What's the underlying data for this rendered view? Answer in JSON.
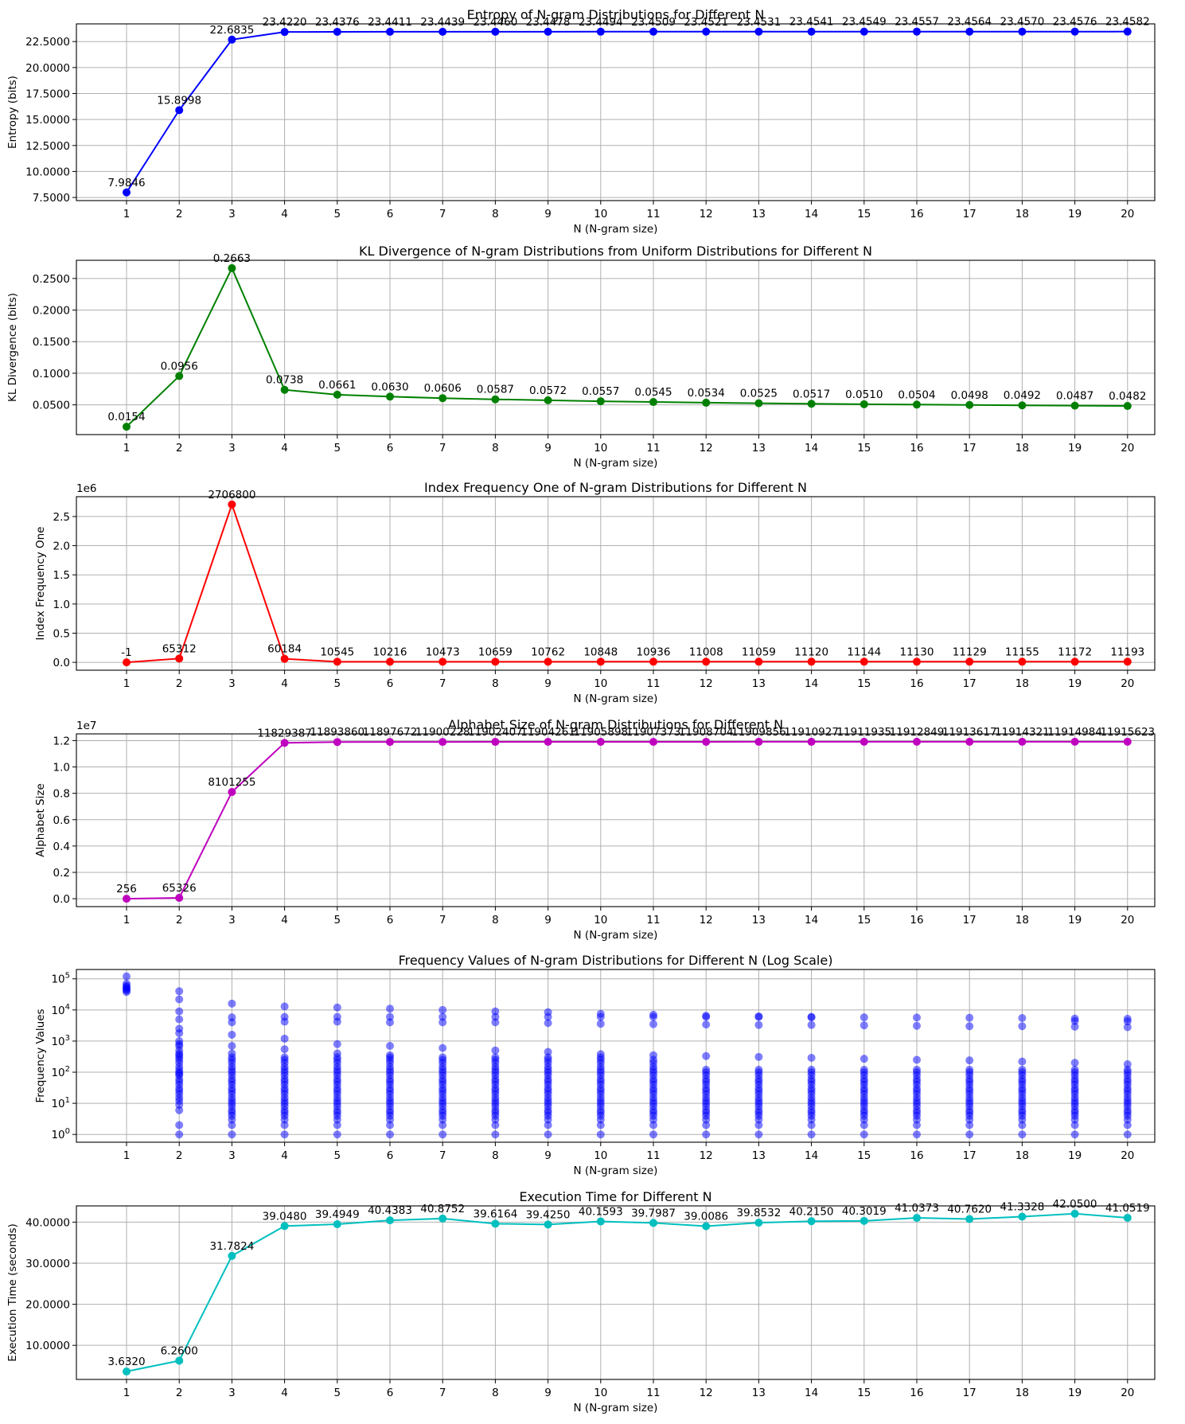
{
  "chart_data": [
    {
      "type": "line",
      "title": "Entropy of N-gram Distributions for Different N",
      "xlabel": "N (N-gram size)",
      "ylabel": "Entropy (bits)",
      "color": "#0000ff",
      "x": [
        1,
        2,
        3,
        4,
        5,
        6,
        7,
        8,
        9,
        10,
        11,
        12,
        13,
        14,
        15,
        16,
        17,
        18,
        19,
        20
      ],
      "values": [
        7.9846,
        15.8998,
        22.6835,
        23.422,
        23.4376,
        23.4411,
        23.4439,
        23.446,
        23.4478,
        23.4494,
        23.4509,
        23.4521,
        23.4531,
        23.4541,
        23.4549,
        23.4557,
        23.4564,
        23.457,
        23.4576,
        23.4582
      ],
      "data_labels": [
        "7.9846",
        "15.8998",
        "22.6835",
        "23.4220",
        "23.4376",
        "23.4411",
        "23.4439",
        "23.4460",
        "23.4478",
        "23.4494",
        "23.4509",
        "23.4521",
        "23.4531",
        "23.4541",
        "23.4549",
        "23.4557",
        "23.4564",
        "23.4570",
        "23.4576",
        "23.4582"
      ],
      "yticks": [
        7.5,
        10,
        12.5,
        15,
        17.5,
        20,
        22.5
      ],
      "ytick_labels": [
        "7.5000",
        "10.0000",
        "12.5000",
        "15.0000",
        "17.5000",
        "20.0000",
        "22.5000"
      ],
      "ylim": [
        7.2,
        24.2
      ],
      "grid": true
    },
    {
      "type": "line",
      "title": "KL Divergence of N-gram Distributions from Uniform Distributions for Different N",
      "xlabel": "N (N-gram size)",
      "ylabel": "KL Divergence (bits)",
      "color": "#008000",
      "x": [
        1,
        2,
        3,
        4,
        5,
        6,
        7,
        8,
        9,
        10,
        11,
        12,
        13,
        14,
        15,
        16,
        17,
        18,
        19,
        20
      ],
      "values": [
        0.0154,
        0.0956,
        0.2663,
        0.0738,
        0.0661,
        0.063,
        0.0606,
        0.0587,
        0.0572,
        0.0557,
        0.0545,
        0.0534,
        0.0525,
        0.0517,
        0.051,
        0.0504,
        0.0498,
        0.0492,
        0.0487,
        0.0482
      ],
      "data_labels": [
        "0.0154",
        "0.0956",
        "0.2663",
        "0.0738",
        "0.0661",
        "0.0630",
        "0.0606",
        "0.0587",
        "0.0572",
        "0.0557",
        "0.0545",
        "0.0534",
        "0.0525",
        "0.0517",
        "0.0510",
        "0.0504",
        "0.0498",
        "0.0492",
        "0.0487",
        "0.0482"
      ],
      "yticks": [
        0.05,
        0.1,
        0.15,
        0.2,
        0.25
      ],
      "ytick_labels": [
        "0.0500",
        "0.1000",
        "0.1500",
        "0.2000",
        "0.2500"
      ],
      "ylim": [
        0.0029,
        0.2788
      ],
      "grid": true
    },
    {
      "type": "line",
      "title": "Index Frequency One of N-gram Distributions for Different N",
      "xlabel": "N (N-gram size)",
      "ylabel": "Index Frequency One",
      "color": "#ff0000",
      "offset_text": "1e6",
      "x": [
        1,
        2,
        3,
        4,
        5,
        6,
        7,
        8,
        9,
        10,
        11,
        12,
        13,
        14,
        15,
        16,
        17,
        18,
        19,
        20
      ],
      "values": [
        -1,
        65312,
        2706800,
        60184,
        10545,
        10216,
        10473,
        10659,
        10762,
        10848,
        10936,
        11008,
        11059,
        11120,
        11144,
        11130,
        11129,
        11155,
        11172,
        11193
      ],
      "data_labels": [
        "-1",
        "65312",
        "2706800",
        "60184",
        "10545",
        "10216",
        "10473",
        "10659",
        "10762",
        "10848",
        "10936",
        "11008",
        "11059",
        "11120",
        "11144",
        "11130",
        "11129",
        "11155",
        "11172",
        "11193"
      ],
      "yticks": [
        0,
        500000,
        1000000,
        1500000,
        2000000,
        2500000
      ],
      "ytick_labels": [
        "0.0",
        "0.5",
        "1.0",
        "1.5",
        "2.0",
        "2.5"
      ],
      "ylim": [
        -135000,
        2840000
      ],
      "grid": true
    },
    {
      "type": "line",
      "title": "Alphabet Size of N-gram Distributions for Different N",
      "xlabel": "N (N-gram size)",
      "ylabel": "Alphabet Size",
      "color": "#bf00bf",
      "offset_text": "1e7",
      "x": [
        1,
        2,
        3,
        4,
        5,
        6,
        7,
        8,
        9,
        10,
        11,
        12,
        13,
        14,
        15,
        16,
        17,
        18,
        19,
        20
      ],
      "values": [
        256,
        65326,
        8101255,
        11829387,
        11893860,
        11897672,
        11900228,
        11902407,
        11904261,
        11905898,
        11907373,
        11908704,
        11909856,
        11910927,
        11911935,
        11912849,
        11913617,
        11914321,
        11914984,
        11915623
      ],
      "data_labels": [
        "256",
        "65326",
        "8101255",
        "11829387",
        "11893860",
        "11897672",
        "11900228",
        "11902407",
        "11904261",
        "11905898",
        "11907373",
        "11908704",
        "11909856",
        "11910927",
        "11911935",
        "11912849",
        "11913617",
        "11914321",
        "11914984",
        "11915623"
      ],
      "yticks": [
        0,
        2000000,
        4000000,
        6000000,
        8000000,
        10000000,
        12000000
      ],
      "ytick_labels": [
        "0.0",
        "0.2",
        "0.4",
        "0.6",
        "0.8",
        "1.0",
        "1.2"
      ],
      "ylim": [
        -600000,
        12510000
      ],
      "grid": true
    },
    {
      "type": "scatter",
      "title": "Frequency Values of N-gram Distributions for Different N (Log Scale)",
      "xlabel": "N (N-gram size)",
      "ylabel": "Frequency Values",
      "color": "#0000ff",
      "y_scale": "log",
      "x": [
        1,
        2,
        3,
        4,
        5,
        6,
        7,
        8,
        9,
        10,
        11,
        12,
        13,
        14,
        15,
        16,
        17,
        18,
        19,
        20
      ],
      "points": [
        [
          120000,
          70000,
          60000,
          55000,
          50000,
          46000,
          42000,
          38000
        ],
        [
          40000,
          22000,
          9000,
          5000,
          2500,
          1800,
          1000,
          800,
          700,
          500,
          400,
          350,
          300,
          250,
          200,
          150,
          120,
          100,
          90,
          80,
          60,
          50,
          40,
          30,
          25,
          20,
          15,
          12,
          9,
          6,
          2,
          1
        ],
        [
          16000,
          5800,
          4000,
          1600,
          700,
          400,
          300,
          250,
          200,
          150,
          120,
          100,
          80,
          60,
          50,
          40,
          30,
          25,
          20,
          15,
          12,
          10,
          8,
          6,
          5,
          4,
          3,
          2,
          1
        ],
        [
          13000,
          6000,
          4200,
          1200,
          550,
          300,
          250,
          200,
          150,
          120,
          100,
          80,
          60,
          50,
          40,
          30,
          25,
          20,
          15,
          12,
          10,
          8,
          6,
          5,
          4,
          3,
          2,
          1
        ],
        [
          12000,
          6000,
          4200,
          800,
          400,
          300,
          250,
          200,
          150,
          120,
          100,
          80,
          60,
          50,
          40,
          30,
          25,
          20,
          15,
          12,
          10,
          8,
          6,
          5,
          4,
          3,
          2,
          1
        ],
        [
          11000,
          6000,
          4000,
          700,
          350,
          300,
          250,
          200,
          150,
          120,
          100,
          80,
          60,
          50,
          40,
          30,
          25,
          20,
          15,
          12,
          10,
          8,
          6,
          5,
          4,
          3,
          2,
          1
        ],
        [
          10000,
          6000,
          4000,
          600,
          300,
          250,
          200,
          150,
          120,
          100,
          80,
          60,
          50,
          40,
          30,
          25,
          20,
          15,
          12,
          10,
          8,
          6,
          5,
          4,
          3,
          2,
          1
        ],
        [
          9000,
          6000,
          4000,
          500,
          300,
          250,
          200,
          150,
          120,
          100,
          80,
          60,
          50,
          40,
          30,
          25,
          20,
          15,
          12,
          10,
          8,
          6,
          5,
          4,
          3,
          2,
          1
        ],
        [
          8500,
          6000,
          3800,
          450,
          300,
          250,
          200,
          150,
          120,
          100,
          80,
          60,
          50,
          40,
          30,
          25,
          20,
          15,
          12,
          10,
          8,
          6,
          5,
          4,
          3,
          2,
          1
        ],
        [
          7500,
          6000,
          3600,
          380,
          300,
          250,
          200,
          150,
          120,
          100,
          80,
          60,
          50,
          40,
          30,
          25,
          20,
          15,
          12,
          10,
          8,
          6,
          5,
          4,
          3,
          2,
          1
        ],
        [
          7000,
          6000,
          3500,
          350,
          250,
          200,
          150,
          120,
          100,
          80,
          60,
          50,
          40,
          30,
          25,
          20,
          15,
          12,
          10,
          8,
          6,
          5,
          4,
          3,
          2,
          1
        ],
        [
          6500,
          6000,
          3400,
          330,
          120,
          100,
          80,
          60,
          50,
          40,
          30,
          25,
          20,
          15,
          12,
          10,
          8,
          6,
          5,
          4,
          3,
          2,
          1
        ],
        [
          6200,
          6000,
          3300,
          310,
          120,
          100,
          80,
          60,
          50,
          40,
          30,
          25,
          20,
          15,
          12,
          10,
          8,
          6,
          5,
          4,
          3,
          2,
          1
        ],
        [
          6000,
          5800,
          3300,
          290,
          120,
          100,
          80,
          60,
          50,
          40,
          30,
          25,
          20,
          15,
          12,
          10,
          8,
          6,
          5,
          4,
          3,
          2,
          1
        ],
        [
          5800,
          3200,
          270,
          120,
          100,
          80,
          60,
          50,
          40,
          30,
          25,
          20,
          15,
          12,
          10,
          8,
          6,
          5,
          4,
          3,
          2,
          1
        ],
        [
          5700,
          3100,
          250,
          120,
          100,
          80,
          60,
          50,
          40,
          30,
          25,
          20,
          15,
          12,
          10,
          8,
          6,
          5,
          4,
          3,
          2,
          1
        ],
        [
          5600,
          3000,
          240,
          120,
          100,
          80,
          60,
          50,
          40,
          30,
          25,
          20,
          15,
          12,
          10,
          8,
          6,
          5,
          4,
          3,
          2,
          1
        ],
        [
          5500,
          3000,
          220,
          120,
          100,
          80,
          60,
          50,
          40,
          30,
          25,
          20,
          15,
          12,
          10,
          8,
          6,
          5,
          4,
          3,
          2,
          1
        ],
        [
          5300,
          4400,
          2900,
          200,
          120,
          100,
          80,
          60,
          50,
          40,
          30,
          25,
          20,
          15,
          12,
          10,
          8,
          6,
          5,
          4,
          3,
          2,
          1
        ],
        [
          5200,
          4300,
          2800,
          180,
          120,
          100,
          80,
          60,
          50,
          40,
          30,
          25,
          20,
          15,
          12,
          10,
          8,
          6,
          5,
          4,
          3,
          2,
          1
        ]
      ],
      "yticks": [
        1,
        10,
        100,
        1000,
        10000,
        100000
      ],
      "ytick_labels": [
        "10^0",
        "10^1",
        "10^2",
        "10^3",
        "10^4",
        "10^5"
      ],
      "ylim_log": [
        -0.25,
        5.3
      ],
      "grid": true
    },
    {
      "type": "line",
      "title": "Execution Time for Different N",
      "xlabel": "N (N-gram size)",
      "ylabel": "Execution Time (seconds)",
      "color": "#00bfbf",
      "x": [
        1,
        2,
        3,
        4,
        5,
        6,
        7,
        8,
        9,
        10,
        11,
        12,
        13,
        14,
        15,
        16,
        17,
        18,
        19,
        20
      ],
      "values": [
        3.632,
        6.26,
        31.7824,
        39.048,
        39.4949,
        40.4383,
        40.8752,
        39.6164,
        39.425,
        40.1593,
        39.7987,
        39.0086,
        39.8532,
        40.215,
        40.3019,
        41.0373,
        40.762,
        41.3328,
        42.05,
        41.0519
      ],
      "data_labels": [
        "3.6320",
        "6.2600",
        "31.7824",
        "39.0480",
        "39.4949",
        "40.4383",
        "40.8752",
        "39.6164",
        "39.4250",
        "40.1593",
        "39.7987",
        "39.0086",
        "39.8532",
        "40.2150",
        "40.3019",
        "41.0373",
        "40.7620",
        "41.3328",
        "42.0500",
        "41.0519"
      ],
      "yticks": [
        10,
        20,
        30,
        40
      ],
      "ytick_labels": [
        "10.0000",
        "20.0000",
        "30.0000",
        "40.0000"
      ],
      "ylim": [
        1.7,
        43.95
      ],
      "grid": true
    }
  ]
}
